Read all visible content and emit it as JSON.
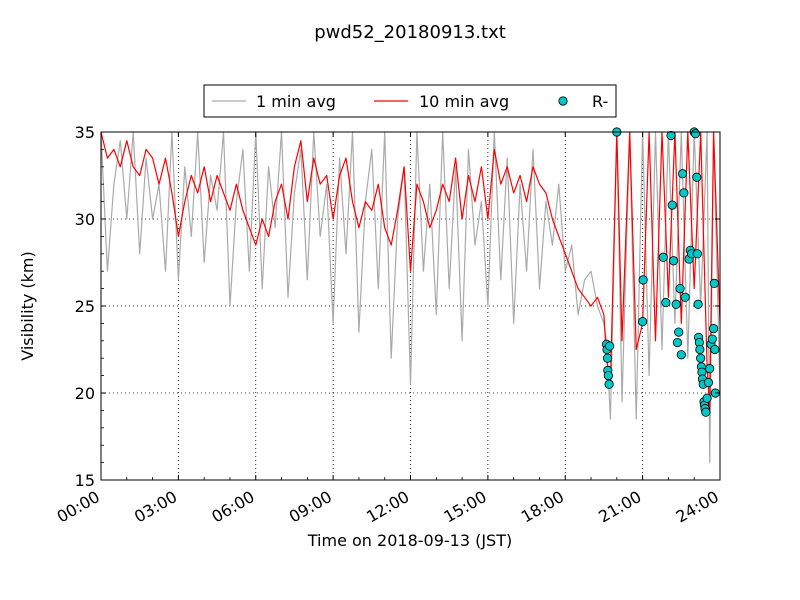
{
  "chart_data": {
    "type": "line",
    "title": "pwd52_20180913.txt",
    "xlabel": "Time on 2018-09-13 (JST)",
    "ylabel": "Visibility (km)",
    "xlim": [
      0,
      24
    ],
    "ylim": [
      15,
      35
    ],
    "x_ticks": [
      "00:00",
      "03:00",
      "06:00",
      "09:00",
      "12:00",
      "15:00",
      "18:00",
      "21:00",
      "24:00"
    ],
    "y_ticks": [
      "15",
      "20",
      "25",
      "30",
      "35"
    ],
    "grid": true,
    "legend_position": "top-center",
    "series": [
      {
        "name": "1 min avg",
        "color": "#aaaaaa",
        "x_hours": [
          0.0,
          0.25,
          0.5,
          0.75,
          1.0,
          1.25,
          1.5,
          1.75,
          2.0,
          2.25,
          2.5,
          2.75,
          3.0,
          3.25,
          3.5,
          3.75,
          4.0,
          4.25,
          4.5,
          4.75,
          5.0,
          5.25,
          5.5,
          5.75,
          6.0,
          6.25,
          6.5,
          6.75,
          7.0,
          7.25,
          7.5,
          7.75,
          8.0,
          8.25,
          8.5,
          8.75,
          9.0,
          9.25,
          9.5,
          9.75,
          10.0,
          10.25,
          10.5,
          10.75,
          11.0,
          11.25,
          11.5,
          11.75,
          12.0,
          12.25,
          12.5,
          12.75,
          13.0,
          13.25,
          13.5,
          13.75,
          14.0,
          14.25,
          14.5,
          14.75,
          15.0,
          15.25,
          15.5,
          15.75,
          16.0,
          16.25,
          16.5,
          16.75,
          17.0,
          17.25,
          17.5,
          17.75,
          18.0,
          18.25,
          18.5,
          18.75,
          19.0,
          19.25,
          19.5,
          19.6,
          19.75,
          20.0,
          20.2,
          20.5,
          20.75,
          21.0,
          21.25,
          21.5,
          21.75,
          22.0,
          22.25,
          22.5,
          22.75,
          23.0,
          23.25,
          23.5,
          23.6,
          23.75,
          24.0
        ],
        "y_km": [
          35.0,
          27.0,
          32.0,
          34.5,
          30.0,
          35.0,
          28.0,
          33.5,
          30.0,
          32.0,
          27.0,
          35.0,
          26.5,
          33.0,
          29.0,
          35.0,
          27.5,
          32.5,
          30.5,
          35.0,
          25.0,
          31.0,
          34.0,
          27.0,
          35.0,
          26.0,
          33.0,
          29.5,
          35.0,
          25.5,
          31.5,
          34.0,
          26.5,
          35.0,
          29.0,
          32.0,
          24.0,
          33.5,
          28.0,
          35.0,
          23.5,
          31.0,
          34.0,
          26.0,
          35.0,
          22.0,
          30.0,
          33.0,
          20.5,
          35.0,
          27.0,
          32.0,
          24.5,
          35.0,
          26.0,
          33.0,
          23.0,
          34.0,
          28.5,
          31.0,
          25.0,
          35.0,
          26.5,
          33.5,
          24.0,
          32.0,
          27.0,
          34.0,
          26.0,
          31.0,
          28.5,
          32.0,
          27.0,
          28.5,
          24.5,
          26.5,
          27.0,
          25.0,
          24.0,
          23.0,
          18.5,
          35.0,
          19.5,
          35.0,
          18.5,
          35.0,
          21.0,
          35.0,
          22.5,
          35.0,
          24.0,
          35.0,
          22.0,
          35.0,
          25.0,
          35.0,
          16.0,
          35.0,
          20.0
        ]
      },
      {
        "name": "10 min avg",
        "color": "#ff0000",
        "x_hours": [
          0.0,
          0.25,
          0.5,
          0.75,
          1.0,
          1.25,
          1.5,
          1.75,
          2.0,
          2.25,
          2.5,
          2.75,
          3.0,
          3.25,
          3.5,
          3.75,
          4.0,
          4.25,
          4.5,
          4.75,
          5.0,
          5.25,
          5.5,
          5.75,
          6.0,
          6.25,
          6.5,
          6.75,
          7.0,
          7.25,
          7.5,
          7.75,
          8.0,
          8.25,
          8.5,
          8.75,
          9.0,
          9.25,
          9.5,
          9.75,
          10.0,
          10.25,
          10.5,
          10.75,
          11.0,
          11.25,
          11.5,
          11.75,
          12.0,
          12.25,
          12.5,
          12.75,
          13.0,
          13.25,
          13.5,
          13.75,
          14.0,
          14.25,
          14.5,
          14.75,
          15.0,
          15.25,
          15.5,
          15.75,
          16.0,
          16.25,
          16.5,
          16.75,
          17.0,
          17.25,
          17.5,
          17.75,
          18.0,
          18.25,
          18.5,
          18.75,
          19.0,
          19.25,
          19.5,
          19.6,
          19.75,
          20.0,
          20.2,
          20.5,
          20.75,
          21.0,
          21.25,
          21.5,
          21.75,
          22.0,
          22.25,
          22.5,
          22.75,
          23.0,
          23.25,
          23.5,
          23.6,
          23.75,
          24.0
        ],
        "y_km": [
          35.0,
          33.5,
          34.0,
          33.0,
          34.5,
          33.0,
          32.5,
          34.0,
          33.5,
          32.0,
          33.5,
          31.5,
          29.0,
          31.0,
          32.5,
          31.5,
          33.0,
          31.0,
          32.5,
          31.5,
          30.5,
          32.0,
          30.5,
          29.5,
          28.5,
          30.0,
          29.0,
          31.0,
          32.0,
          30.0,
          33.0,
          34.5,
          31.0,
          33.5,
          32.0,
          32.5,
          30.0,
          32.5,
          33.5,
          31.0,
          29.5,
          31.0,
          30.5,
          32.0,
          29.5,
          28.5,
          30.5,
          33.0,
          27.0,
          32.0,
          31.0,
          29.5,
          30.5,
          32.0,
          31.0,
          33.5,
          30.0,
          32.5,
          31.0,
          33.0,
          30.0,
          34.0,
          32.0,
          33.0,
          31.5,
          32.5,
          31.0,
          33.0,
          32.0,
          31.5,
          30.0,
          29.0,
          28.0,
          27.0,
          26.0,
          25.5,
          25.0,
          25.5,
          24.5,
          22.0,
          20.5,
          35.0,
          23.0,
          35.0,
          22.5,
          24.0,
          35.0,
          23.0,
          35.0,
          25.5,
          35.0,
          24.0,
          35.0,
          26.0,
          35.0,
          21.5,
          19.0,
          35.0,
          24.0
        ]
      },
      {
        "name": "R-",
        "color": "#00c8c8",
        "marker": "circle",
        "x_hours": [
          19.6,
          19.62,
          19.64,
          19.65,
          19.67,
          19.7,
          19.72,
          20.0,
          21.0,
          21.02,
          21.8,
          21.9,
          22.1,
          22.15,
          22.2,
          22.3,
          22.35,
          22.4,
          22.45,
          22.5,
          22.55,
          22.6,
          22.65,
          22.8,
          22.85,
          22.9,
          23.0,
          23.05,
          23.1,
          23.12,
          23.15,
          23.17,
          23.2,
          23.22,
          23.25,
          23.28,
          23.3,
          23.32,
          23.35,
          23.38,
          23.4,
          23.42,
          23.45,
          23.5,
          23.55,
          23.6,
          23.65,
          23.7,
          23.75,
          23.78,
          23.8,
          23.82
        ],
        "y_km": [
          22.8,
          22.5,
          22.0,
          21.3,
          21.0,
          20.5,
          22.7,
          35.0,
          24.1,
          26.5,
          27.8,
          25.2,
          34.8,
          30.8,
          27.6,
          25.1,
          22.9,
          23.5,
          26.0,
          22.2,
          32.6,
          31.5,
          25.5,
          27.7,
          28.2,
          28.0,
          35.0,
          34.9,
          32.4,
          28.0,
          25.1,
          23.2,
          22.9,
          22.5,
          22.0,
          21.5,
          21.2,
          20.8,
          20.5,
          19.5,
          19.3,
          19.1,
          18.9,
          19.7,
          20.6,
          21.4,
          22.8,
          23.1,
          23.7,
          26.3,
          22.5,
          20.0
        ]
      }
    ]
  }
}
